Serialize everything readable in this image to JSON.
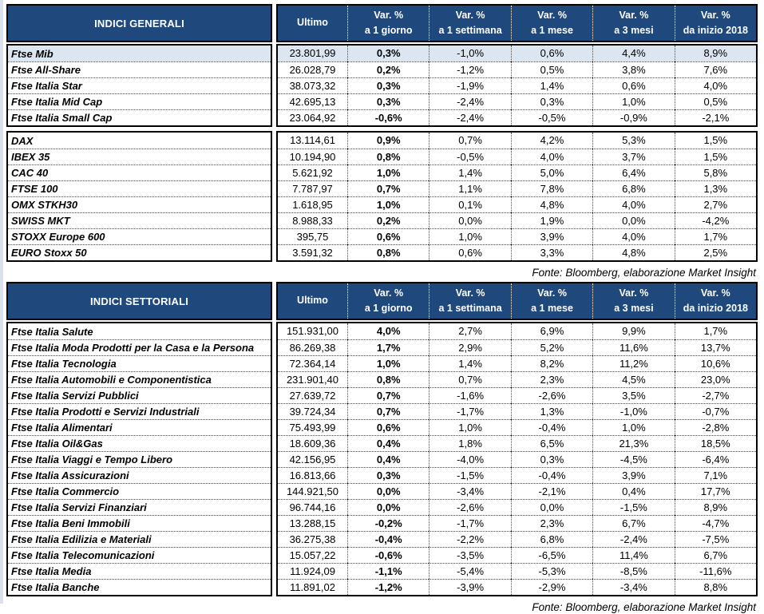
{
  "colors": {
    "header_bg": "#1F497D",
    "highlight": "#DCE6F1",
    "header_text": "#FFFFFF"
  },
  "source_note": "Fonte: Bloomberg, elaborazione Market Insight",
  "tables": [
    {
      "title": "INDICI GENERALI",
      "source": "Fonte: Bloomberg, elaborazione Market Insight",
      "columns": [
        {
          "label": "Ultimo",
          "sub": ""
        },
        {
          "label": "Var. %",
          "sub": "a 1 giorno"
        },
        {
          "label": "Var. %",
          "sub": "a 1 settimana"
        },
        {
          "label": "Var. %",
          "sub": "a 1 mese"
        },
        {
          "label": "Var. %",
          "sub": "a 3 mesi"
        },
        {
          "label": "Var. %",
          "sub": "da inizio 2018"
        }
      ],
      "groups": [
        {
          "rows": [
            {
              "name": "Ftse Mib",
              "highlight": true,
              "values": [
                "23.801,99",
                "0,3%",
                "-1,0%",
                "0,6%",
                "4,4%",
                "8,9%"
              ]
            },
            {
              "name": "Ftse All-Share",
              "highlight": false,
              "values": [
                "26.028,79",
                "0,2%",
                "-1,2%",
                "0,5%",
                "3,8%",
                "7,6%"
              ]
            },
            {
              "name": "Ftse Italia Star",
              "highlight": false,
              "values": [
                "38.073,32",
                "0,3%",
                "-1,9%",
                "1,4%",
                "0,6%",
                "4,0%"
              ]
            },
            {
              "name": "Ftse Italia Mid Cap",
              "highlight": false,
              "values": [
                "42.695,13",
                "0,3%",
                "-2,4%",
                "0,3%",
                "1,0%",
                "0,5%"
              ]
            },
            {
              "name": "Ftse Italia Small Cap",
              "highlight": false,
              "values": [
                "23.064,92",
                "-0,6%",
                "-2,4%",
                "-0,5%",
                "-0,9%",
                "-2,1%"
              ]
            }
          ]
        },
        {
          "rows": [
            {
              "name": "DAX",
              "highlight": false,
              "values": [
                "13.114,61",
                "0,9%",
                "0,7%",
                "4,2%",
                "5,3%",
                "1,5%"
              ]
            },
            {
              "name": "IBEX 35",
              "highlight": false,
              "values": [
                "10.194,90",
                "0,8%",
                "-0,5%",
                "4,0%",
                "3,7%",
                "1,5%"
              ]
            },
            {
              "name": "CAC 40",
              "highlight": false,
              "values": [
                "5.621,92",
                "1,0%",
                "1,4%",
                "5,0%",
                "6,4%",
                "5,8%"
              ]
            },
            {
              "name": "FTSE 100",
              "highlight": false,
              "values": [
                "7.787,97",
                "0,7%",
                "1,1%",
                "7,8%",
                "6,8%",
                "1,3%"
              ]
            },
            {
              "name": "OMX STKH30",
              "highlight": false,
              "values": [
                "1.618,95",
                "1,0%",
                "0,1%",
                "4,8%",
                "4,0%",
                "2,7%"
              ]
            },
            {
              "name": "SWISS MKT",
              "highlight": false,
              "values": [
                "8.988,33",
                "0,2%",
                "0,0%",
                "1,9%",
                "0,0%",
                "-4,2%"
              ]
            },
            {
              "name": "STOXX Europe 600",
              "highlight": false,
              "values": [
                "395,75",
                "0,6%",
                "1,0%",
                "3,9%",
                "4,0%",
                "1,7%"
              ]
            },
            {
              "name": "EURO Stoxx 50",
              "highlight": false,
              "values": [
                "3.591,32",
                "0,8%",
                "0,6%",
                "3,3%",
                "4,8%",
                "2,5%"
              ]
            }
          ]
        }
      ]
    },
    {
      "title": "INDICI SETTORIALI",
      "source": "Fonte: Bloomberg, elaborazione Market Insight",
      "columns": [
        {
          "label": "Ultimo",
          "sub": ""
        },
        {
          "label": "Var. %",
          "sub": "a 1 giorno"
        },
        {
          "label": "Var. %",
          "sub": "a 1 settimana"
        },
        {
          "label": "Var. %",
          "sub": "a 1 mese"
        },
        {
          "label": "Var. %",
          "sub": "a 3 mesi"
        },
        {
          "label": "Var. %",
          "sub": "da inizio 2018"
        }
      ],
      "groups": [
        {
          "rows": [
            {
              "name": "Ftse Italia Salute",
              "highlight": false,
              "values": [
                "151.931,00",
                "4,0%",
                "2,7%",
                "6,9%",
                "9,9%",
                "1,7%"
              ]
            },
            {
              "name": "Ftse Italia Moda Prodotti per la Casa e la Persona",
              "highlight": false,
              "values": [
                "86.269,38",
                "1,7%",
                "2,9%",
                "5,2%",
                "11,6%",
                "13,7%"
              ]
            },
            {
              "name": "Ftse Italia Tecnologia",
              "highlight": false,
              "values": [
                "72.364,14",
                "1,0%",
                "1,4%",
                "8,2%",
                "11,2%",
                "10,6%"
              ]
            },
            {
              "name": "Ftse Italia Automobili e Componentistica",
              "highlight": false,
              "values": [
                "231.901,40",
                "0,8%",
                "0,7%",
                "2,3%",
                "4,5%",
                "23,0%"
              ]
            },
            {
              "name": "Ftse Italia Servizi Pubblici",
              "highlight": false,
              "values": [
                "27.639,72",
                "0,7%",
                "-1,6%",
                "-2,6%",
                "3,5%",
                "-2,7%"
              ]
            },
            {
              "name": "Ftse Italia Prodotti e Servizi Industriali",
              "highlight": false,
              "values": [
                "39.724,34",
                "0,7%",
                "-1,7%",
                "1,3%",
                "-1,0%",
                "-0,7%"
              ]
            },
            {
              "name": "Ftse Italia Alimentari",
              "highlight": false,
              "values": [
                "75.493,99",
                "0,6%",
                "1,0%",
                "-0,4%",
                "1,0%",
                "-2,8%"
              ]
            },
            {
              "name": "Ftse Italia Oil&Gas",
              "highlight": false,
              "values": [
                "18.609,36",
                "0,4%",
                "1,8%",
                "6,5%",
                "21,3%",
                "18,5%"
              ]
            },
            {
              "name": "Ftse Italia Viaggi e Tempo Libero",
              "highlight": false,
              "values": [
                "42.156,95",
                "0,4%",
                "-4,0%",
                "0,3%",
                "-4,5%",
                "-6,4%"
              ]
            },
            {
              "name": "Ftse Italia Assicurazioni",
              "highlight": false,
              "values": [
                "16.813,66",
                "0,3%",
                "-1,5%",
                "-0,4%",
                "3,9%",
                "7,1%"
              ]
            },
            {
              "name": "Ftse Italia Commercio",
              "highlight": false,
              "values": [
                "144.921,50",
                "0,0%",
                "-3,4%",
                "-2,1%",
                "0,4%",
                "17,7%"
              ]
            },
            {
              "name": "Ftse Italia Servizi Finanziari",
              "highlight": false,
              "values": [
                "96.744,16",
                "0,0%",
                "-2,6%",
                "0,0%",
                "-1,5%",
                "8,9%"
              ]
            },
            {
              "name": "Ftse Italia Beni Immobili",
              "highlight": false,
              "values": [
                "13.288,15",
                "-0,2%",
                "-1,7%",
                "2,3%",
                "6,7%",
                "-4,7%"
              ]
            },
            {
              "name": "Ftse Italia Edilizia e Materiali",
              "highlight": false,
              "values": [
                "36.275,38",
                "-0,4%",
                "-2,2%",
                "6,8%",
                "-2,4%",
                "-7,5%"
              ]
            },
            {
              "name": "Ftse Italia Telecomunicazioni",
              "highlight": false,
              "values": [
                "15.057,22",
                "-0,6%",
                "-3,5%",
                "-6,5%",
                "11,4%",
                "6,7%"
              ]
            },
            {
              "name": "Ftse Italia Media",
              "highlight": false,
              "values": [
                "11.924,09",
                "-1,1%",
                "-5,4%",
                "-5,3%",
                "-8,5%",
                "-11,6%"
              ]
            },
            {
              "name": "Ftse Italia Banche",
              "highlight": false,
              "values": [
                "11.891,02",
                "-1,2%",
                "-3,9%",
                "-2,9%",
                "-3,4%",
                "8,8%"
              ]
            }
          ]
        }
      ]
    }
  ]
}
